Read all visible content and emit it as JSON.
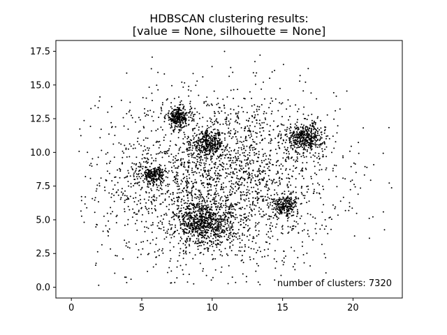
{
  "chart_data": {
    "type": "scatter",
    "title_line1": "HDBSCAN clustering results:",
    "title_line2": "[value = None, silhouette = None]",
    "xlabel": "",
    "ylabel": "",
    "xlim": [
      -1.1,
      23.5
    ],
    "ylim": [
      -0.8,
      18.3
    ],
    "x_ticks": [
      0,
      5,
      10,
      15,
      20
    ],
    "x_tick_labels": [
      "0",
      "5",
      "10",
      "15",
      "20"
    ],
    "y_ticks": [
      0.0,
      2.5,
      5.0,
      7.5,
      10.0,
      12.5,
      15.0,
      17.5
    ],
    "y_tick_labels": [
      "0.0",
      "2.5",
      "5.0",
      "7.5",
      "10.0",
      "12.5",
      "15.0",
      "17.5"
    ],
    "grid": false,
    "legend": "none",
    "annotation": "number of clusters: 7320",
    "point_color": "#000000",
    "dense_clusters_approx": [
      {
        "x": 7.6,
        "y": 12.6
      },
      {
        "x": 9.7,
        "y": 10.6
      },
      {
        "x": 5.8,
        "y": 8.3
      },
      {
        "x": 9.4,
        "y": 4.7
      },
      {
        "x": 15.2,
        "y": 6.0
      },
      {
        "x": 16.6,
        "y": 11.1
      }
    ],
    "background_spread_center": {
      "x": 10.5,
      "y": 8.0
    }
  }
}
